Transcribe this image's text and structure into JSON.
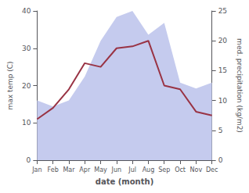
{
  "chart_data": {
    "type": "line",
    "categories": [
      "Jan",
      "Feb",
      "Mar",
      "Apr",
      "May",
      "Jun",
      "Jul",
      "Aug",
      "Sep",
      "Oct",
      "Nov",
      "Dec"
    ],
    "series": [
      {
        "type": "area",
        "color": "#c5cbee",
        "axis": "y2",
        "values": [
          10,
          9,
          10,
          14,
          20,
          24,
          25,
          21,
          23,
          13,
          12,
          13
        ]
      },
      {
        "type": "line",
        "color": "#993344",
        "values": [
          11,
          14,
          19,
          26,
          25,
          30,
          30.5,
          32,
          20,
          19,
          13,
          12
        ]
      }
    ],
    "xlabel": "date (month)",
    "ylabel": "max temp (C)",
    "y2label": "med. precipitation (kg/m2)",
    "ylim": [
      0,
      40
    ],
    "yticks": [
      0,
      10,
      20,
      30,
      40
    ],
    "y2lim": [
      0,
      25
    ],
    "y2ticks": [
      0,
      5,
      10,
      15,
      20,
      25
    ],
    "grid": false
  }
}
